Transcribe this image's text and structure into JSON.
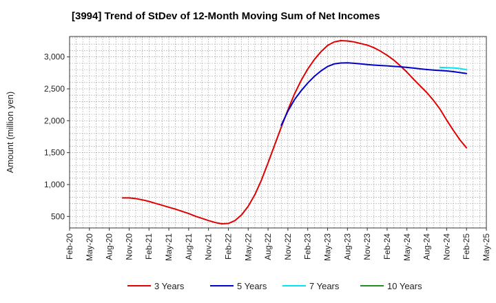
{
  "chart_data": {
    "type": "line",
    "title": "[3994]  Trend of StDev of 12-Month Moving Sum of Net Incomes",
    "xlabel": "",
    "ylabel": "Amount (million yen)",
    "x_ticks": [
      "Feb-20",
      "May-20",
      "Aug-20",
      "Nov-20",
      "Feb-21",
      "May-21",
      "Aug-21",
      "Nov-21",
      "Feb-22",
      "May-22",
      "Aug-22",
      "Nov-22",
      "Feb-23",
      "May-23",
      "Aug-23",
      "Nov-23",
      "Feb-24",
      "May-24",
      "Aug-24",
      "Nov-24",
      "Feb-25",
      "May-25"
    ],
    "y_ticks": [
      500,
      1000,
      1500,
      2000,
      2500,
      3000
    ],
    "y_tick_labels": [
      "500",
      "1,000",
      "1,500",
      "2,000",
      "2,500",
      "3,000"
    ],
    "ylim": [
      320,
      3320
    ],
    "grid": true,
    "legend_position": "bottom",
    "series": [
      {
        "name": "3 Years",
        "color": "#e00000",
        "points": [
          [
            "Oct-20",
            790
          ],
          [
            "Nov-20",
            790
          ],
          [
            "Dec-20",
            780
          ],
          [
            "Jan-21",
            760
          ],
          [
            "Feb-21",
            735
          ],
          [
            "Mar-21",
            705
          ],
          [
            "Apr-21",
            675
          ],
          [
            "May-21",
            645
          ],
          [
            "Jun-21",
            615
          ],
          [
            "Jul-21",
            580
          ],
          [
            "Aug-21",
            545
          ],
          [
            "Sep-21",
            505
          ],
          [
            "Oct-21",
            470
          ],
          [
            "Nov-21",
            435
          ],
          [
            "Dec-21",
            405
          ],
          [
            "Jan-22",
            385
          ],
          [
            "Feb-22",
            390
          ],
          [
            "Mar-22",
            435
          ],
          [
            "Apr-22",
            525
          ],
          [
            "May-22",
            660
          ],
          [
            "Jun-22",
            840
          ],
          [
            "Jul-22",
            1070
          ],
          [
            "Aug-22",
            1340
          ],
          [
            "Sep-22",
            1620
          ],
          [
            "Oct-22",
            1900
          ],
          [
            "Nov-22",
            2170
          ],
          [
            "Dec-22",
            2420
          ],
          [
            "Jan-23",
            2630
          ],
          [
            "Feb-23",
            2810
          ],
          [
            "Mar-23",
            2960
          ],
          [
            "Apr-23",
            3080
          ],
          [
            "May-23",
            3180
          ],
          [
            "Jun-23",
            3235
          ],
          [
            "Jul-23",
            3255
          ],
          [
            "Aug-23",
            3250
          ],
          [
            "Sep-23",
            3235
          ],
          [
            "Oct-23",
            3210
          ],
          [
            "Nov-23",
            3185
          ],
          [
            "Dec-23",
            3145
          ],
          [
            "Jan-24",
            3090
          ],
          [
            "Feb-24",
            3025
          ],
          [
            "Mar-24",
            2950
          ],
          [
            "Apr-24",
            2860
          ],
          [
            "May-24",
            2760
          ],
          [
            "Jun-24",
            2650
          ],
          [
            "Jul-24",
            2545
          ],
          [
            "Aug-24",
            2440
          ],
          [
            "Sep-24",
            2320
          ],
          [
            "Oct-24",
            2180
          ],
          [
            "Nov-24",
            2010
          ],
          [
            "Dec-24",
            1850
          ],
          [
            "Jan-25",
            1700
          ],
          [
            "Feb-25",
            1575
          ]
        ]
      },
      {
        "name": "5 Years",
        "color": "#0000cc",
        "points": [
          [
            "Oct-22",
            1930
          ],
          [
            "Nov-22",
            2150
          ],
          [
            "Dec-22",
            2330
          ],
          [
            "Jan-23",
            2470
          ],
          [
            "Feb-23",
            2590
          ],
          [
            "Mar-23",
            2695
          ],
          [
            "Apr-23",
            2780
          ],
          [
            "May-23",
            2850
          ],
          [
            "Jun-23",
            2890
          ],
          [
            "Jul-23",
            2905
          ],
          [
            "Aug-23",
            2908
          ],
          [
            "Sep-23",
            2900
          ],
          [
            "Oct-23",
            2890
          ],
          [
            "Nov-23",
            2880
          ],
          [
            "Dec-23",
            2872
          ],
          [
            "Jan-24",
            2866
          ],
          [
            "Feb-24",
            2860
          ],
          [
            "Mar-24",
            2852
          ],
          [
            "Apr-24",
            2845
          ],
          [
            "May-24",
            2835
          ],
          [
            "Jun-24",
            2825
          ],
          [
            "Jul-24",
            2813
          ],
          [
            "Aug-24",
            2802
          ],
          [
            "Sep-24",
            2793
          ],
          [
            "Oct-24",
            2787
          ],
          [
            "Nov-24",
            2780
          ],
          [
            "Dec-24",
            2770
          ],
          [
            "Jan-25",
            2755
          ],
          [
            "Feb-25",
            2740
          ]
        ]
      },
      {
        "name": "7 Years",
        "color": "#00e5ee",
        "points": [
          [
            "Oct-24",
            2835
          ],
          [
            "Nov-24",
            2832
          ],
          [
            "Dec-24",
            2828
          ],
          [
            "Jan-25",
            2818
          ],
          [
            "Feb-25",
            2800
          ]
        ]
      },
      {
        "name": "10 Years",
        "color": "#228b22",
        "points": []
      }
    ]
  }
}
